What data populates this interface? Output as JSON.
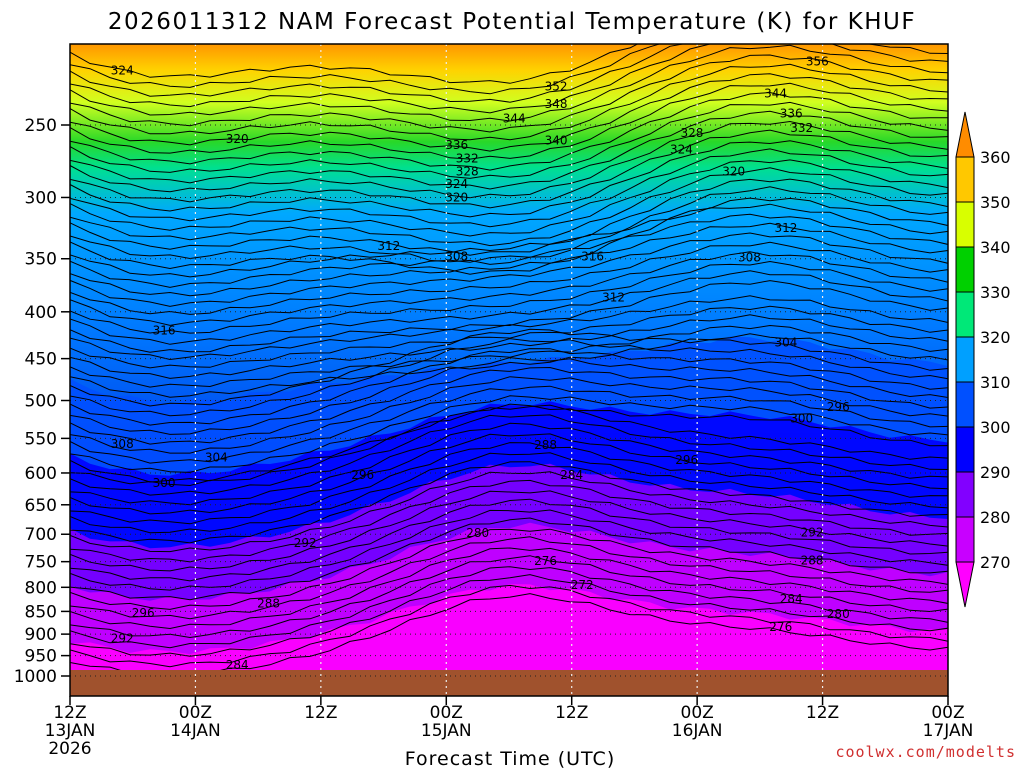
{
  "chart_data": {
    "type": "heatmap",
    "title": "2026011312 NAM Forecast Potential Temperature (K) for KHUF",
    "subtitle": "",
    "xlabel": "Forecast Time (UTC)",
    "ylabel": "",
    "y_scale": "log",
    "y_inverted": true,
    "ylim": [
      1010,
      200
    ],
    "y_ticks": [
      250,
      300,
      350,
      400,
      450,
      500,
      550,
      600,
      650,
      700,
      750,
      800,
      850,
      900,
      950,
      1000
    ],
    "y_tick_labels": [
      "250",
      "300",
      "350",
      "400",
      "450",
      "500",
      "550",
      "600",
      "650",
      "700",
      "750",
      "800",
      "850",
      "900",
      "950",
      "1000"
    ],
    "x_ticks": [
      {
        "hour": 0,
        "line1": "12Z",
        "line2": "13JAN",
        "line3": "2026"
      },
      {
        "hour": 12,
        "line1": "00Z",
        "line2": "14JAN",
        "line3": ""
      },
      {
        "hour": 24,
        "line1": "12Z",
        "line2": "",
        "line3": ""
      },
      {
        "hour": 36,
        "line1": "00Z",
        "line2": "15JAN",
        "line3": ""
      },
      {
        "hour": 48,
        "line1": "12Z",
        "line2": "",
        "line3": ""
      },
      {
        "hour": 60,
        "line1": "00Z",
        "line2": "16JAN",
        "line3": ""
      },
      {
        "hour": 72,
        "line1": "12Z",
        "line2": "",
        "line3": ""
      },
      {
        "hour": 84,
        "line1": "00Z",
        "line2": "17JAN",
        "line3": ""
      }
    ],
    "x_range_hours": [
      0,
      84
    ],
    "grid": true,
    "colorbar": {
      "placement": "right",
      "levels": [
        270,
        280,
        290,
        300,
        310,
        320,
        330,
        340,
        350,
        360
      ],
      "tick_labels": [
        "270",
        "280",
        "290",
        "300",
        "310",
        "320",
        "330",
        "340",
        "350",
        "360"
      ],
      "colors": [
        "#ff00ff",
        "#c800ff",
        "#8200ff",
        "#0000ff",
        "#0050ff",
        "#00a0ff",
        "#00e878",
        "#00d000",
        "#d8ff00",
        "#ffc800",
        "#ff8c00"
      ]
    },
    "contour_interval": 2,
    "contour_labels": [
      {
        "value": "356",
        "hour": 71.5,
        "p": 213
      },
      {
        "value": "352",
        "hour": 46.5,
        "p": 227
      },
      {
        "value": "348",
        "hour": 46.5,
        "p": 237
      },
      {
        "value": "344",
        "hour": 42.5,
        "p": 246
      },
      {
        "value": "344",
        "hour": 67.5,
        "p": 231
      },
      {
        "value": "340",
        "hour": 46.5,
        "p": 260
      },
      {
        "value": "336",
        "hour": 37,
        "p": 263
      },
      {
        "value": "332",
        "hour": 38,
        "p": 272
      },
      {
        "value": "328",
        "hour": 38,
        "p": 281
      },
      {
        "value": "324",
        "hour": 37,
        "p": 290
      },
      {
        "value": "320",
        "hour": 37,
        "p": 300
      },
      {
        "value": "336",
        "hour": 69,
        "p": 243
      },
      {
        "value": "332",
        "hour": 70,
        "p": 252
      },
      {
        "value": "328",
        "hour": 59.5,
        "p": 255
      },
      {
        "value": "324",
        "hour": 58.5,
        "p": 266
      },
      {
        "value": "320",
        "hour": 63.5,
        "p": 281
      },
      {
        "value": "324",
        "hour": 5,
        "p": 218
      },
      {
        "value": "320",
        "hour": 16,
        "p": 259
      },
      {
        "value": "312",
        "hour": 30.5,
        "p": 339
      },
      {
        "value": "308",
        "hour": 37,
        "p": 348
      },
      {
        "value": "316",
        "hour": 50,
        "p": 348
      },
      {
        "value": "312",
        "hour": 52,
        "p": 386
      },
      {
        "value": "312",
        "hour": 68.5,
        "p": 324
      },
      {
        "value": "308",
        "hour": 65,
        "p": 349
      },
      {
        "value": "316",
        "hour": 9,
        "p": 419
      },
      {
        "value": "304",
        "hour": 68.5,
        "p": 432
      },
      {
        "value": "308",
        "hour": 5,
        "p": 558
      },
      {
        "value": "304",
        "hour": 14,
        "p": 577
      },
      {
        "value": "300",
        "hour": 9,
        "p": 615
      },
      {
        "value": "296",
        "hour": 28,
        "p": 603
      },
      {
        "value": "300",
        "hour": 70,
        "p": 523
      },
      {
        "value": "296",
        "hour": 73.5,
        "p": 508
      },
      {
        "value": "288",
        "hour": 45.5,
        "p": 559
      },
      {
        "value": "284",
        "hour": 48,
        "p": 603
      },
      {
        "value": "296",
        "hour": 59,
        "p": 581
      },
      {
        "value": "292",
        "hour": 22.5,
        "p": 716
      },
      {
        "value": "280",
        "hour": 39,
        "p": 698
      },
      {
        "value": "276",
        "hour": 45.5,
        "p": 749
      },
      {
        "value": "272",
        "hour": 49,
        "p": 795
      },
      {
        "value": "292",
        "hour": 71,
        "p": 697
      },
      {
        "value": "288",
        "hour": 71,
        "p": 748
      },
      {
        "value": "284",
        "hour": 69,
        "p": 824
      },
      {
        "value": "280",
        "hour": 73.5,
        "p": 856
      },
      {
        "value": "276",
        "hour": 68,
        "p": 884
      },
      {
        "value": "296",
        "hour": 7,
        "p": 853
      },
      {
        "value": "292",
        "hour": 5,
        "p": 910
      },
      {
        "value": "288",
        "hour": 19,
        "p": 833
      },
      {
        "value": "284",
        "hour": 16,
        "p": 973
      }
    ],
    "credit": "coolwx.com/modelts"
  }
}
